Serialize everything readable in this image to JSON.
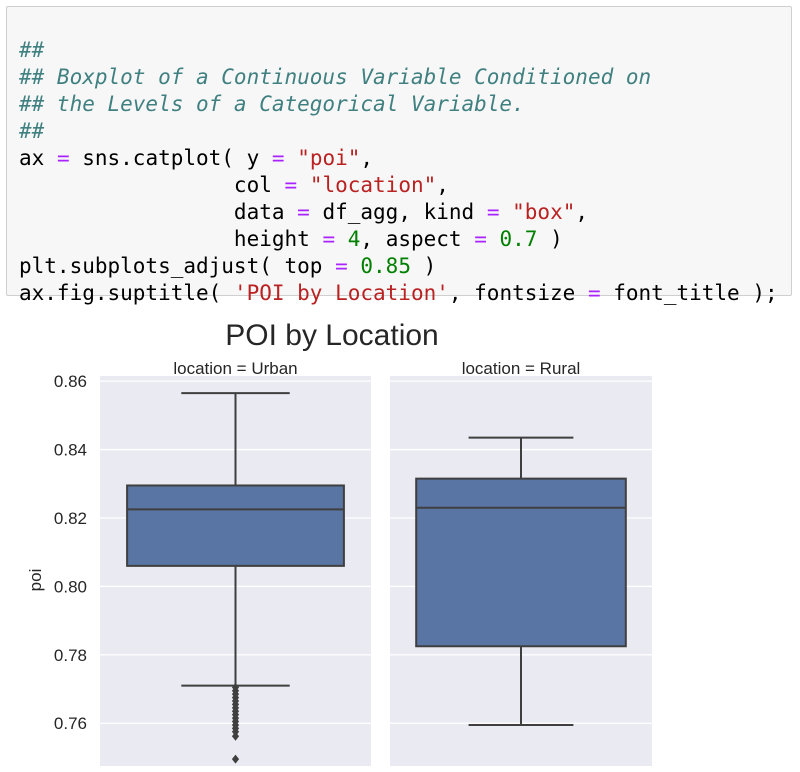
{
  "code_cell": {
    "lines": [
      [
        {
          "t": "##",
          "c": "comment"
        }
      ],
      [
        {
          "t": "## Boxplot of a Continuous Variable Conditioned on",
          "c": "comment"
        }
      ],
      [
        {
          "t": "## the Levels of a Categorical Variable.",
          "c": "comment"
        }
      ],
      [
        {
          "t": "##",
          "c": "comment"
        }
      ],
      [
        {
          "t": "ax ",
          "c": "plain"
        },
        {
          "t": "=",
          "c": "op"
        },
        {
          "t": " sns.catplot( y ",
          "c": "plain"
        },
        {
          "t": "=",
          "c": "op"
        },
        {
          "t": " ",
          "c": "plain"
        },
        {
          "t": "\"poi\"",
          "c": "str"
        },
        {
          "t": ",",
          "c": "plain"
        }
      ],
      [
        {
          "t": "                 col ",
          "c": "plain"
        },
        {
          "t": "=",
          "c": "op"
        },
        {
          "t": " ",
          "c": "plain"
        },
        {
          "t": "\"location\"",
          "c": "str"
        },
        {
          "t": ",",
          "c": "plain"
        }
      ],
      [
        {
          "t": "                 data ",
          "c": "plain"
        },
        {
          "t": "=",
          "c": "op"
        },
        {
          "t": " df_agg, kind ",
          "c": "plain"
        },
        {
          "t": "=",
          "c": "op"
        },
        {
          "t": " ",
          "c": "plain"
        },
        {
          "t": "\"box\"",
          "c": "str"
        },
        {
          "t": ",",
          "c": "plain"
        }
      ],
      [
        {
          "t": "                 height ",
          "c": "plain"
        },
        {
          "t": "=",
          "c": "op"
        },
        {
          "t": " ",
          "c": "plain"
        },
        {
          "t": "4",
          "c": "num"
        },
        {
          "t": ", aspect ",
          "c": "plain"
        },
        {
          "t": "=",
          "c": "op"
        },
        {
          "t": " ",
          "c": "plain"
        },
        {
          "t": "0.7",
          "c": "num"
        },
        {
          "t": " )",
          "c": "plain"
        }
      ],
      [
        {
          "t": "plt.subplots_adjust( top ",
          "c": "plain"
        },
        {
          "t": "=",
          "c": "op"
        },
        {
          "t": " ",
          "c": "plain"
        },
        {
          "t": "0.85",
          "c": "num"
        },
        {
          "t": " )",
          "c": "plain"
        }
      ],
      [
        {
          "t": "ax.fig.suptitle( ",
          "c": "plain"
        },
        {
          "t": "'POI by Location'",
          "c": "str"
        },
        {
          "t": ", fontsize ",
          "c": "plain"
        },
        {
          "t": "=",
          "c": "op"
        },
        {
          "t": " font_title );",
          "c": "plain"
        }
      ]
    ]
  },
  "colors": {
    "panel_bg": "#eaeaf2",
    "grid": "#ffffff",
    "box_fill": "#5975a4",
    "box_line": "#3f3f3f"
  },
  "chart_data": {
    "type": "box",
    "title": "POI by Location",
    "ylabel": "poi",
    "ylim": [
      0.7475,
      0.8615
    ],
    "yticks": [
      0.76,
      0.78,
      0.8,
      0.82,
      0.84,
      0.86
    ],
    "ytick_labels": [
      "0.76",
      "0.78",
      "0.80",
      "0.82",
      "0.84",
      "0.86"
    ],
    "grid": true,
    "facets": [
      {
        "label": "location = Urban",
        "whisker_low": 0.771,
        "q1": 0.806,
        "median": 0.8225,
        "q3": 0.8295,
        "whisker_high": 0.8565,
        "outliers": [
          0.7705,
          0.7695,
          0.7685,
          0.7675,
          0.7665,
          0.7655,
          0.7645,
          0.7635,
          0.7625,
          0.7615,
          0.7605,
          0.7595,
          0.7585,
          0.7575,
          0.7562,
          0.7495
        ]
      },
      {
        "label": "location = Rural",
        "whisker_low": 0.7595,
        "q1": 0.7825,
        "median": 0.823,
        "q3": 0.8315,
        "whisker_high": 0.8435,
        "outliers": []
      }
    ]
  }
}
